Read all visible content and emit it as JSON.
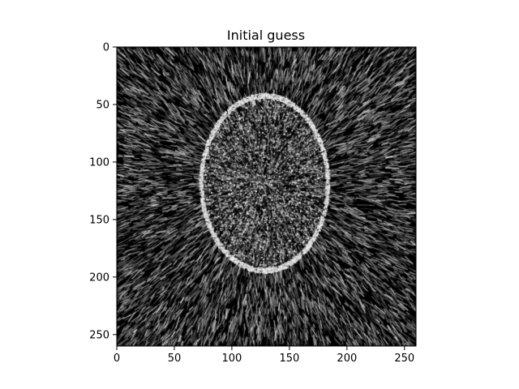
{
  "chart_data": {
    "type": "heatmap",
    "title": "Initial guess",
    "xlabel": "",
    "ylabel": "",
    "colormap": "gray",
    "image_size": [
      260,
      260
    ],
    "xlim": [
      0,
      260
    ],
    "ylim": [
      260,
      0
    ],
    "x_ticks": [
      0,
      50,
      100,
      150,
      200,
      250
    ],
    "y_ticks": [
      0,
      50,
      100,
      150,
      200,
      250
    ],
    "x_tick_labels": [
      "0",
      "50",
      "100",
      "150",
      "200",
      "250"
    ],
    "y_tick_labels": [
      "0",
      "50",
      "100",
      "150",
      "200",
      "250"
    ],
    "grid": false,
    "features": {
      "ellipse_center": [
        128,
        118
      ],
      "ellipse_radii": [
        55,
        76
      ]
    }
  }
}
